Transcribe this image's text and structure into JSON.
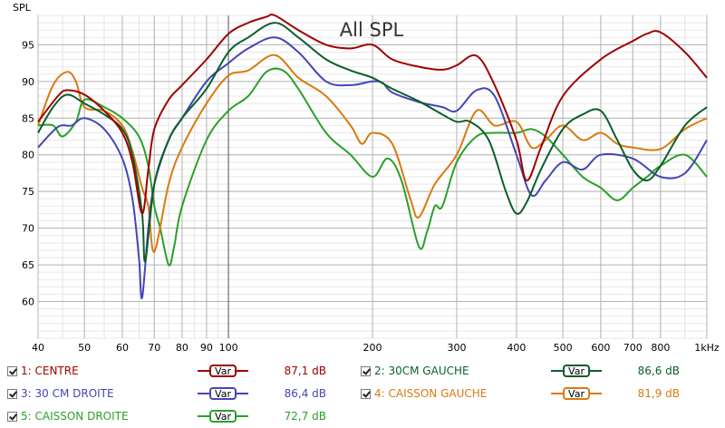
{
  "chart_data": {
    "type": "line",
    "title": "All SPL",
    "ylabel": "SPL",
    "xscale": "log",
    "xlim": [
      40,
      1000
    ],
    "ylim": [
      55,
      99
    ],
    "yticks": [
      60,
      65,
      70,
      75,
      80,
      85,
      90,
      95
    ],
    "xticks": [
      {
        "v": 40,
        "label": "40"
      },
      {
        "v": 50,
        "label": "50"
      },
      {
        "v": 60,
        "label": "60"
      },
      {
        "v": 70,
        "label": "70"
      },
      {
        "v": 80,
        "label": "80"
      },
      {
        "v": 90,
        "label": "90"
      },
      {
        "v": 100,
        "label": "100"
      },
      {
        "v": 200,
        "label": "200"
      },
      {
        "v": 300,
        "label": "300"
      },
      {
        "v": 400,
        "label": "400"
      },
      {
        "v": 500,
        "label": "500"
      },
      {
        "v": 600,
        "label": "600"
      },
      {
        "v": 700,
        "label": "700"
      },
      {
        "v": 800,
        "label": "800"
      },
      {
        "v": 1000,
        "label": "1kHz"
      }
    ],
    "grid": true,
    "series": [
      {
        "name": "1: CENTRE",
        "color": "#a00000",
        "value": "87,1 dB",
        "x": [
          40,
          44,
          46,
          50,
          55,
          60,
          63,
          66,
          68,
          70,
          75,
          80,
          90,
          100,
          110,
          120,
          125,
          140,
          160,
          180,
          200,
          220,
          250,
          280,
          300,
          330,
          360,
          400,
          420,
          450,
          500,
          600,
          700,
          750,
          800,
          900,
          1000
        ],
        "y": [
          84.5,
          88,
          88.8,
          88.2,
          86,
          83,
          79,
          72,
          78,
          83.5,
          87.5,
          89.5,
          93,
          96.5,
          98,
          98.8,
          99,
          97,
          95,
          94.5,
          95,
          93,
          92,
          91.6,
          92.2,
          93.5,
          89.5,
          82,
          76.5,
          81,
          88,
          93,
          95.5,
          96.5,
          96.7,
          94,
          90.5
        ]
      },
      {
        "name": "2: 30CM GAUCHE",
        "color": "#0c5e2a",
        "value": "86,6 dB",
        "x": [
          40,
          43,
          46,
          50,
          55,
          60,
          63,
          66,
          67,
          70,
          75,
          80,
          90,
          100,
          110,
          125,
          140,
          160,
          180,
          200,
          220,
          250,
          280,
          300,
          320,
          350,
          380,
          400,
          420,
          450,
          500,
          550,
          600,
          650,
          700,
          750,
          800,
          900,
          1000
        ],
        "y": [
          83,
          86.5,
          88.2,
          87,
          85.5,
          83.5,
          80,
          72,
          65.5,
          76,
          82,
          85,
          89,
          94,
          96,
          98,
          96,
          93,
          91.5,
          90.5,
          89,
          87.3,
          85.5,
          84.5,
          84.5,
          82,
          75,
          72,
          73.5,
          78,
          83.5,
          85.5,
          86,
          82,
          78,
          76.5,
          78.5,
          84,
          86.5
        ]
      },
      {
        "name": "3: 30 CM DROITE",
        "color": "#4545b8",
        "value": "86,4 dB",
        "x": [
          40,
          44,
          47,
          50,
          55,
          60,
          63,
          65,
          66,
          68,
          70,
          75,
          80,
          90,
          100,
          110,
          125,
          140,
          160,
          180,
          200,
          210,
          220,
          250,
          280,
          300,
          330,
          360,
          400,
          430,
          460,
          500,
          550,
          600,
          700,
          800,
          900,
          1000
        ],
        "y": [
          81,
          83.8,
          84,
          85,
          83.5,
          79.5,
          74,
          66,
          60.5,
          70,
          76,
          82,
          85,
          90,
          92.5,
          94.5,
          96,
          94,
          90,
          89.5,
          90,
          89.8,
          88.5,
          87.2,
          86.5,
          86,
          88.8,
          88,
          80,
          74.5,
          76.5,
          79,
          78,
          80,
          79.5,
          77,
          77.5,
          82
        ]
      },
      {
        "name": "4: CAISSON GAUCHE",
        "color": "#d97a10",
        "value": "81,9 dB",
        "x": [
          40,
          43,
          46,
          48,
          50,
          55,
          60,
          63,
          66,
          68,
          70,
          75,
          80,
          90,
          100,
          110,
          125,
          140,
          160,
          180,
          190,
          200,
          220,
          240,
          250,
          270,
          300,
          330,
          360,
          400,
          430,
          460,
          500,
          550,
          600,
          650,
          700,
          800,
          900,
          1000
        ],
        "y": [
          84,
          89.5,
          91.3,
          90,
          86.5,
          86,
          84,
          80.5,
          75.5,
          73,
          66.8,
          76,
          81,
          87,
          90.8,
          91.5,
          93.6,
          90.5,
          88,
          84,
          81.5,
          83,
          81.5,
          74,
          71.5,
          76,
          80,
          86,
          84,
          84.5,
          81,
          82,
          84,
          82,
          83,
          81.5,
          81,
          80.8,
          83.5,
          85
        ]
      },
      {
        "name": "5: CAISSON DROITE",
        "color": "#2aa02a",
        "value": "72,7 dB",
        "x": [
          40,
          43,
          45,
          48,
          50,
          55,
          60,
          65,
          68,
          70,
          72,
          75,
          77,
          80,
          90,
          100,
          110,
          120,
          130,
          140,
          160,
          180,
          200,
          215,
          230,
          250,
          260,
          270,
          280,
          300,
          330,
          360,
          400,
          430,
          460,
          500,
          550,
          600,
          650,
          700,
          750,
          800,
          900,
          1000
        ],
        "y": [
          84,
          84,
          82.5,
          84.5,
          87.5,
          86.5,
          85,
          82.5,
          78.5,
          73,
          70,
          65,
          67.5,
          73,
          82,
          86,
          88,
          91.3,
          91.5,
          89,
          83,
          80,
          77,
          79.5,
          76.5,
          67.5,
          69.5,
          73,
          73,
          79,
          82.5,
          83,
          83,
          83.5,
          82.5,
          80,
          77,
          75.5,
          73.8,
          75.5,
          77,
          78.5,
          80,
          77
        ]
      }
    ]
  },
  "legend": {
    "var_label": "Var"
  }
}
